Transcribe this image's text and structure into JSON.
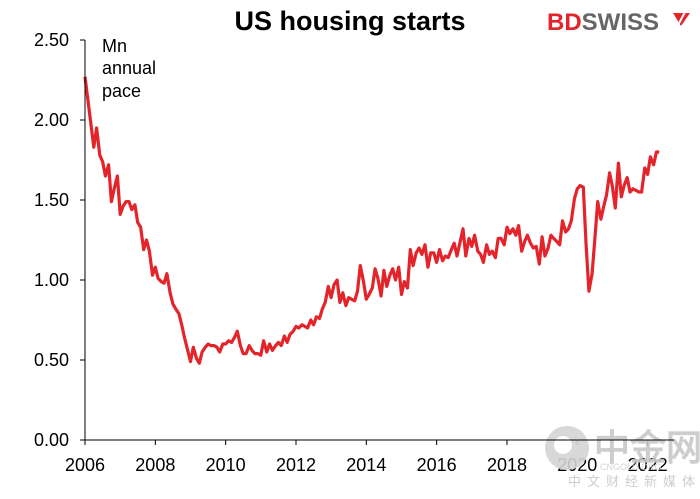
{
  "chart_data": {
    "type": "line",
    "title": "US housing starts",
    "ylabel_lines": [
      "Mn",
      "annual",
      "pace"
    ],
    "xlabel": "",
    "xlim": [
      2006.0,
      2022.75
    ],
    "ylim": [
      0.0,
      2.5
    ],
    "yticks": [
      "0.00",
      "0.50",
      "1.00",
      "1.50",
      "2.00",
      "2.50"
    ],
    "ytick_values": [
      0,
      0.5,
      1.0,
      1.5,
      2.0,
      2.5
    ],
    "xticks": [
      "2006",
      "2008",
      "2010",
      "2012",
      "2014",
      "2016",
      "2018",
      "2020",
      "2022"
    ],
    "xtick_values": [
      2006,
      2008,
      2010,
      2012,
      2014,
      2016,
      2018,
      2020,
      2022
    ],
    "series": [
      {
        "name": "US housing starts",
        "color": "#e3242b",
        "x": [
          2006.0,
          2006.08,
          2006.17,
          2006.25,
          2006.33,
          2006.42,
          2006.5,
          2006.58,
          2006.67,
          2006.75,
          2006.83,
          2006.92,
          2007.0,
          2007.08,
          2007.17,
          2007.25,
          2007.33,
          2007.42,
          2007.5,
          2007.58,
          2007.67,
          2007.75,
          2007.83,
          2007.92,
          2008.0,
          2008.08,
          2008.17,
          2008.25,
          2008.33,
          2008.42,
          2008.5,
          2008.58,
          2008.67,
          2008.75,
          2008.83,
          2008.92,
          2009.0,
          2009.08,
          2009.17,
          2009.25,
          2009.33,
          2009.42,
          2009.5,
          2009.58,
          2009.67,
          2009.75,
          2009.83,
          2009.92,
          2010.0,
          2010.08,
          2010.17,
          2010.25,
          2010.33,
          2010.42,
          2010.5,
          2010.58,
          2010.67,
          2010.75,
          2010.83,
          2010.92,
          2011.0,
          2011.08,
          2011.17,
          2011.25,
          2011.33,
          2011.42,
          2011.5,
          2011.58,
          2011.67,
          2011.75,
          2011.83,
          2011.92,
          2012.0,
          2012.08,
          2012.17,
          2012.25,
          2012.33,
          2012.42,
          2012.5,
          2012.58,
          2012.67,
          2012.75,
          2012.83,
          2012.92,
          2013.0,
          2013.08,
          2013.17,
          2013.25,
          2013.33,
          2013.42,
          2013.5,
          2013.58,
          2013.67,
          2013.75,
          2013.83,
          2013.92,
          2014.0,
          2014.08,
          2014.17,
          2014.25,
          2014.33,
          2014.42,
          2014.5,
          2014.58,
          2014.67,
          2014.75,
          2014.83,
          2014.92,
          2015.0,
          2015.08,
          2015.17,
          2015.25,
          2015.33,
          2015.42,
          2015.5,
          2015.58,
          2015.67,
          2015.75,
          2015.83,
          2015.92,
          2016.0,
          2016.08,
          2016.17,
          2016.25,
          2016.33,
          2016.42,
          2016.5,
          2016.58,
          2016.67,
          2016.75,
          2016.83,
          2016.92,
          2017.0,
          2017.08,
          2017.17,
          2017.25,
          2017.33,
          2017.42,
          2017.5,
          2017.58,
          2017.67,
          2017.75,
          2017.83,
          2017.92,
          2018.0,
          2018.08,
          2018.17,
          2018.25,
          2018.33,
          2018.42,
          2018.5,
          2018.58,
          2018.67,
          2018.75,
          2018.83,
          2018.92,
          2019.0,
          2019.08,
          2019.17,
          2019.25,
          2019.33,
          2019.42,
          2019.5,
          2019.58,
          2019.67,
          2019.75,
          2019.83,
          2019.92,
          2020.0,
          2020.08,
          2020.17,
          2020.25,
          2020.33,
          2020.42,
          2020.5,
          2020.58,
          2020.67,
          2020.75,
          2020.83,
          2020.92,
          2021.0,
          2021.08,
          2021.17,
          2021.25,
          2021.33,
          2021.42,
          2021.5,
          2021.58,
          2021.67,
          2021.75,
          2021.83,
          2021.92,
          2022.0,
          2022.08,
          2022.17,
          2022.25,
          2022.33
        ],
        "values": [
          2.27,
          2.13,
          1.97,
          1.83,
          1.95,
          1.78,
          1.74,
          1.65,
          1.72,
          1.49,
          1.57,
          1.65,
          1.41,
          1.46,
          1.49,
          1.49,
          1.44,
          1.47,
          1.36,
          1.33,
          1.19,
          1.25,
          1.18,
          1.03,
          1.08,
          1.01,
          0.99,
          0.98,
          1.04,
          0.92,
          0.85,
          0.82,
          0.79,
          0.72,
          0.64,
          0.56,
          0.49,
          0.58,
          0.51,
          0.48,
          0.55,
          0.58,
          0.6,
          0.59,
          0.59,
          0.58,
          0.55,
          0.6,
          0.6,
          0.62,
          0.61,
          0.64,
          0.68,
          0.59,
          0.54,
          0.54,
          0.59,
          0.56,
          0.54,
          0.54,
          0.53,
          0.62,
          0.55,
          0.6,
          0.56,
          0.59,
          0.61,
          0.59,
          0.65,
          0.61,
          0.66,
          0.68,
          0.71,
          0.7,
          0.72,
          0.71,
          0.7,
          0.75,
          0.72,
          0.77,
          0.76,
          0.82,
          0.86,
          0.96,
          0.89,
          0.97,
          1.0,
          0.86,
          0.92,
          0.84,
          0.89,
          0.88,
          0.87,
          0.93,
          1.09,
          0.99,
          0.88,
          0.91,
          0.95,
          1.07,
          1.01,
          0.9,
          1.06,
          0.96,
          1.03,
          1.07,
          1.0,
          1.08,
          0.91,
          0.99,
          0.95,
          1.19,
          1.09,
          1.17,
          1.2,
          1.16,
          1.22,
          1.08,
          1.17,
          1.17,
          1.11,
          1.19,
          1.12,
          1.15,
          1.14,
          1.19,
          1.23,
          1.15,
          1.24,
          1.32,
          1.15,
          1.26,
          1.21,
          1.28,
          1.18,
          1.16,
          1.11,
          1.22,
          1.16,
          1.18,
          1.14,
          1.26,
          1.26,
          1.22,
          1.33,
          1.29,
          1.32,
          1.28,
          1.34,
          1.18,
          1.24,
          1.28,
          1.23,
          1.2,
          1.21,
          1.1,
          1.27,
          1.15,
          1.2,
          1.28,
          1.26,
          1.24,
          1.22,
          1.37,
          1.3,
          1.32,
          1.37,
          1.51,
          1.57,
          1.59,
          1.58,
          1.22,
          0.93,
          1.04,
          1.26,
          1.49,
          1.38,
          1.46,
          1.53,
          1.67,
          1.58,
          1.45,
          1.73,
          1.52,
          1.59,
          1.64,
          1.55,
          1.57,
          1.56,
          1.55,
          1.55,
          1.7,
          1.66,
          1.77,
          1.72,
          1.8,
          1.8
        ]
      }
    ]
  },
  "brand": {
    "bd": "BD",
    "swiss": "SWISS"
  },
  "watermark": {
    "cn": "中金网",
    "sub": "中文财经新媒体",
    "en": "CNGOLD.ORG"
  }
}
